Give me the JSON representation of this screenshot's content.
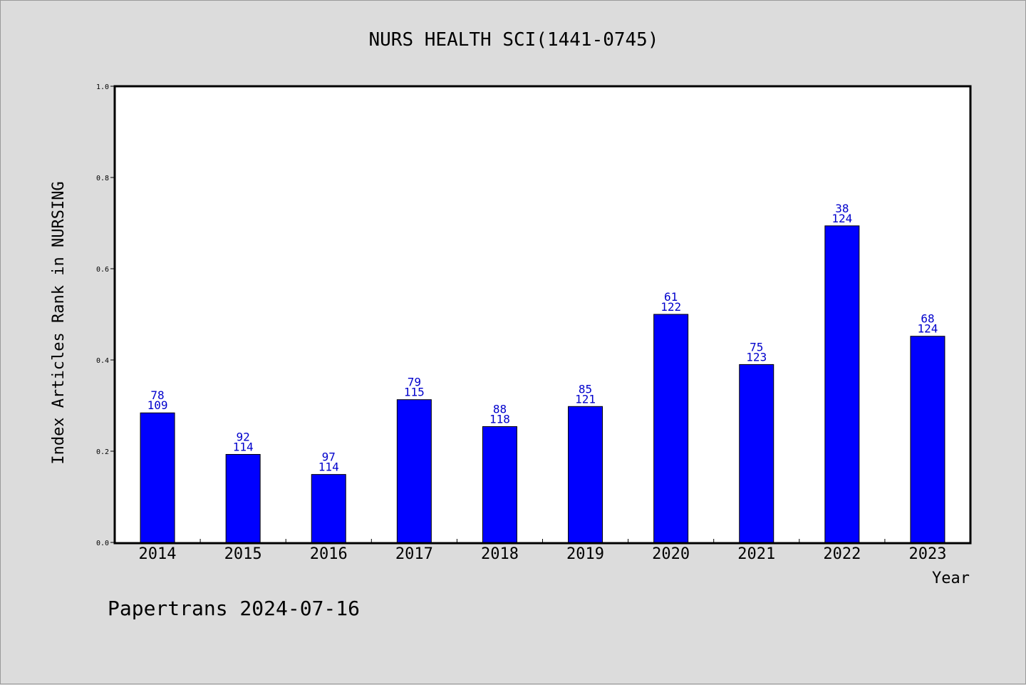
{
  "chart_data": {
    "type": "bar",
    "title": "NURS HEALTH SCI(1441-0745)",
    "xlabel": "Year",
    "ylabel": "Index Articles Rank in NURSING",
    "ylim": [
      0,
      1.0
    ],
    "yticks": [
      "0.0",
      "0.2",
      "0.4",
      "0.6",
      "0.8",
      "1.0"
    ],
    "categories": [
      "2014",
      "2015",
      "2016",
      "2017",
      "2018",
      "2019",
      "2020",
      "2021",
      "2022",
      "2023"
    ],
    "values": [
      0.284,
      0.193,
      0.149,
      0.313,
      0.254,
      0.298,
      0.5,
      0.39,
      0.694,
      0.452
    ],
    "rank_labels": [
      "78",
      "92",
      "97",
      "79",
      "88",
      "85",
      "61",
      "75",
      "38",
      "68"
    ],
    "total_labels": [
      "109",
      "114",
      "114",
      "115",
      "118",
      "121",
      "122",
      "123",
      "124",
      "124"
    ],
    "bar_color": "#0000ff",
    "label_color": "#0000cc",
    "grid": false
  },
  "footer": "Papertrans 2024-07-16"
}
